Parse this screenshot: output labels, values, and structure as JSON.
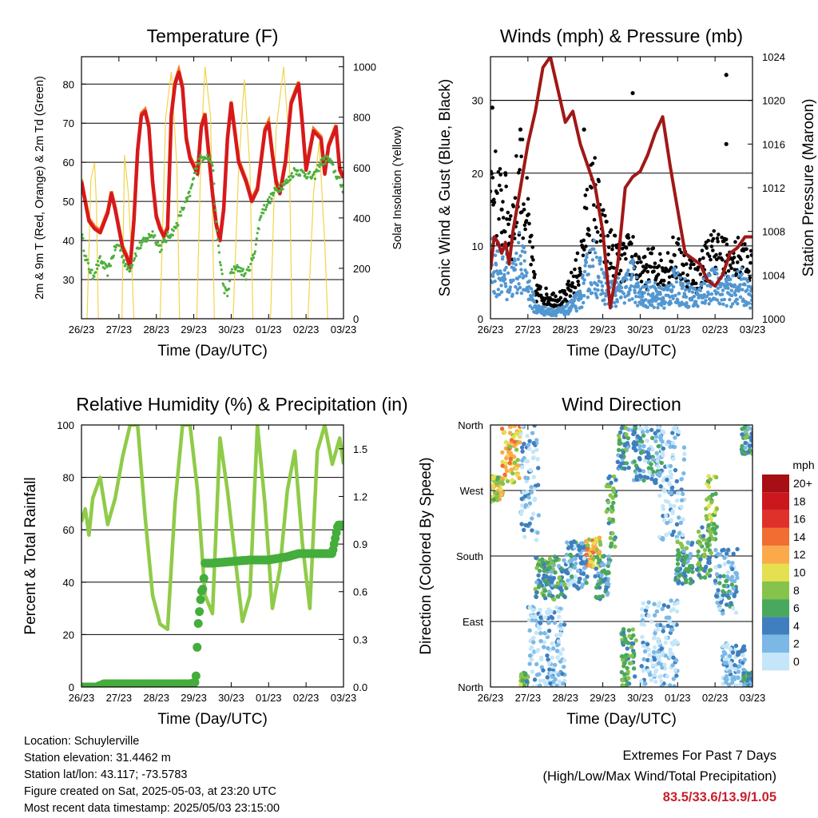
{
  "colors": {
    "temp2m": "#d7191c",
    "temp9m": "#f17c22",
    "dewpoint": "#4daf3c",
    "solar": "#f3d34a",
    "gust": "#000000",
    "wind": "#5297d1",
    "pressure": "#a01818",
    "rh": "#8fcb48",
    "precip": "#44ad3c"
  },
  "chart_data": [
    {
      "type": "line",
      "title": "Temperature (F)",
      "xlabel": "Time (Day/UTC)",
      "ylabel": "2m & 9m T (Red, Orange) & 2m Td (Green)",
      "y2label": "Solar Insolation (Yellow)",
      "x_ticks": [
        "26/23",
        "27/23",
        "28/23",
        "29/23",
        "30/23",
        "01/23",
        "02/23",
        "03/23"
      ],
      "ylim": [
        20,
        87
      ],
      "y_ticks": [
        30,
        40,
        50,
        60,
        70,
        80
      ],
      "y2lim": [
        0,
        1040
      ],
      "y2_ticks": [
        0,
        200,
        400,
        600,
        800,
        1000
      ],
      "grid": "horizontal",
      "series": [
        {
          "name": "2m T",
          "axis": "left",
          "x": [
            0,
            0.1,
            0.2,
            0.35,
            0.5,
            0.7,
            0.8,
            0.9,
            1.0,
            1.1,
            1.2,
            1.3,
            1.4,
            1.5,
            1.6,
            1.7,
            1.8,
            1.9,
            2.0,
            2.1,
            2.2,
            2.3,
            2.4,
            2.5,
            2.6,
            2.7,
            2.8,
            2.9,
            3.0,
            3.1,
            3.2,
            3.3,
            3.4,
            3.5,
            3.6,
            3.7,
            3.8,
            3.9,
            4.0,
            4.2,
            4.4,
            4.55,
            4.7,
            4.9,
            5.0,
            5.1,
            5.2,
            5.3,
            5.45,
            5.6,
            5.8,
            5.9,
            6.0,
            6.2,
            6.4,
            6.5,
            6.6,
            6.8,
            6.9,
            7.0
          ],
          "y": [
            55,
            50,
            45,
            43,
            42,
            47,
            52,
            48,
            43,
            38,
            36,
            33,
            45,
            63,
            72,
            73,
            69,
            55,
            46,
            43,
            41,
            43,
            72,
            80,
            83,
            79,
            66,
            61,
            59,
            57,
            69,
            72,
            62,
            52,
            44,
            40,
            48,
            66,
            75,
            60,
            55,
            50,
            53,
            68,
            70,
            62,
            55,
            52,
            60,
            75,
            80,
            70,
            58,
            68,
            66,
            57,
            64,
            69,
            58,
            56
          ]
        },
        {
          "name": "Td",
          "axis": "left",
          "x": [
            0,
            0.1,
            0.2,
            0.3,
            0.5,
            0.7,
            0.9,
            1.0,
            1.2,
            1.3,
            1.5,
            1.7,
            1.9,
            2.0,
            2.1,
            2.3,
            2.5,
            2.7,
            2.9,
            3.1,
            3.3,
            3.5,
            3.6,
            3.7,
            3.8,
            3.9,
            4.0,
            4.2,
            4.4,
            4.6,
            4.8,
            5.0,
            5.2,
            5.5,
            5.7,
            6.0,
            6.2,
            6.4,
            6.6,
            6.8,
            7.0
          ],
          "y": [
            42,
            36,
            33,
            31,
            35,
            32,
            38,
            39,
            33,
            33,
            38,
            40,
            42,
            40,
            38,
            41,
            43,
            48,
            52,
            60,
            62,
            60,
            44,
            35,
            28,
            26,
            32,
            33,
            31,
            36,
            47,
            50,
            53,
            55,
            58,
            57,
            56,
            60,
            61,
            57,
            53
          ]
        },
        {
          "name": "Solar",
          "axis": "right",
          "x": [
            0.15,
            0.25,
            0.35,
            0.4,
            0.45,
            1.08,
            1.15,
            1.25,
            1.32,
            1.4,
            2.1,
            2.25,
            2.4,
            2.55,
            2.62,
            3.08,
            3.2,
            3.3,
            3.45,
            3.55,
            4.05,
            4.2,
            4.35,
            4.5,
            4.58,
            5.05,
            5.2,
            5.4,
            5.55,
            5.62,
            6.05,
            6.2,
            6.35,
            6.5,
            6.58
          ],
          "y": [
            0,
            550,
            620,
            450,
            0,
            0,
            650,
            500,
            300,
            0,
            0,
            800,
            980,
            600,
            0,
            0,
            700,
            1000,
            800,
            0,
            0,
            600,
            950,
            600,
            0,
            0,
            750,
            1000,
            700,
            0,
            0,
            500,
            700,
            300,
            0
          ]
        }
      ]
    },
    {
      "type": "scatter",
      "title": "Winds (mph) & Pressure (mb)",
      "xlabel": "Time (Day/UTC)",
      "ylabel": "Sonic Wind & Gust (Blue, Black)",
      "y2label": "Station Pressure (Maroon)",
      "x_ticks": [
        "26/23",
        "27/23",
        "28/23",
        "29/23",
        "30/23",
        "01/23",
        "02/23",
        "03/23"
      ],
      "ylim": [
        0,
        36
      ],
      "y_ticks": [
        0,
        10,
        20,
        30
      ],
      "y2lim": [
        1000,
        1024
      ],
      "y2_ticks": [
        1000,
        1004,
        1008,
        1012,
        1016,
        1020,
        1024
      ],
      "grid": "horizontal",
      "series": [
        {
          "name": "Pressure",
          "axis": "right",
          "x": [
            0,
            0.1,
            0.2,
            0.3,
            0.4,
            0.5,
            0.6,
            0.8,
            1.0,
            1.2,
            1.4,
            1.6,
            1.8,
            2.0,
            2.2,
            2.4,
            2.6,
            2.8,
            3.0,
            3.2,
            3.4,
            3.6,
            3.8,
            4.0,
            4.2,
            4.4,
            4.6,
            4.8,
            5.0,
            5.2,
            5.4,
            5.6,
            5.8,
            6.0,
            6.2,
            6.4,
            6.6,
            6.8,
            7.0
          ],
          "y": [
            1004.5,
            1007.5,
            1007,
            1006,
            1007,
            1005,
            1008,
            1012,
            1016,
            1019,
            1023,
            1024,
            1021,
            1018,
            1019,
            1016,
            1014,
            1012,
            1008,
            1001,
            1005,
            1012,
            1013,
            1013.5,
            1015,
            1017,
            1018.5,
            1014,
            1010,
            1006,
            1005.5,
            1005,
            1003.5,
            1003,
            1004,
            1006,
            1006.5,
            1007.5,
            1007.5
          ]
        },
        {
          "name": "Gust",
          "axis": "left",
          "x": [
            0.05,
            0.4,
            0.8,
            0.3,
            2.5,
            3.8,
            6.3,
            6.3
          ],
          "y": [
            29,
            20,
            26,
            15,
            26,
            31,
            33.5,
            24
          ]
        }
      ]
    },
    {
      "type": "line",
      "title": "Relative Humidity (%) & Precipitation (in)",
      "xlabel": "Time (Day/UTC)",
      "ylabel": "Percent & Total Rainfall",
      "x_ticks": [
        "26/23",
        "27/23",
        "28/23",
        "29/23",
        "30/23",
        "01/23",
        "02/23",
        "03/23"
      ],
      "ylim": [
        0,
        100
      ],
      "y_ticks": [
        0,
        20,
        40,
        60,
        80,
        100
      ],
      "y2lim": [
        0,
        1.65
      ],
      "y2_ticks": [
        "0.0",
        "0.3",
        "0.6",
        "0.9",
        "1.2",
        "1.5"
      ],
      "grid": "horizontal",
      "series": [
        {
          "name": "RH",
          "axis": "left",
          "x": [
            0,
            0.1,
            0.2,
            0.3,
            0.5,
            0.7,
            0.9,
            1.1,
            1.3,
            1.5,
            1.7,
            1.9,
            2.1,
            2.3,
            2.5,
            2.7,
            2.9,
            3.1,
            3.3,
            3.5,
            3.7,
            3.9,
            4.1,
            4.3,
            4.5,
            4.7,
            4.9,
            5.1,
            5.3,
            5.5,
            5.7,
            5.9,
            6.1,
            6.3,
            6.5,
            6.7,
            6.9,
            7.0
          ],
          "y": [
            63,
            68,
            58,
            72,
            80,
            62,
            72,
            88,
            100,
            100,
            65,
            35,
            24,
            22,
            70,
            100,
            100,
            75,
            35,
            28,
            95,
            75,
            50,
            25,
            35,
            100,
            70,
            30,
            45,
            75,
            90,
            55,
            30,
            90,
            100,
            85,
            95,
            85
          ]
        },
        {
          "name": "Precip",
          "axis": "right",
          "x": [
            0,
            0.4,
            0.6,
            1.0,
            1.5,
            2.0,
            2.5,
            2.9,
            3.05,
            3.08,
            3.1,
            3.2,
            3.25,
            3.3,
            3.5,
            4.0,
            4.5,
            5.0,
            5.5,
            5.8,
            6.0,
            6.3,
            6.7,
            6.75,
            6.85,
            7.0
          ],
          "y": [
            0,
            0,
            0.02,
            0.02,
            0.02,
            0.02,
            0.02,
            0.02,
            0.03,
            0.15,
            0.35,
            0.6,
            0.62,
            0.78,
            0.78,
            0.79,
            0.8,
            0.8,
            0.82,
            0.84,
            0.84,
            0.84,
            0.84,
            0.9,
            1.02,
            1.02
          ]
        }
      ]
    },
    {
      "type": "scatter",
      "title": "Wind Direction",
      "xlabel": "Time (Day/UTC)",
      "ylabel": "Direction (Colored By Speed)",
      "x_ticks": [
        "26/23",
        "27/23",
        "28/23",
        "29/23",
        "30/23",
        "01/23",
        "02/23",
        "03/23"
      ],
      "y_ticks": [
        "North",
        "East",
        "South",
        "West",
        "North"
      ],
      "ylim": [
        0,
        360
      ],
      "colorbar": {
        "title": "mph",
        "labels": [
          "20+",
          "18",
          "16",
          "14",
          "12",
          "10",
          "8",
          "6",
          "4",
          "2",
          "0"
        ],
        "colors": [
          "#a50f15",
          "#cb181d",
          "#e0302a",
          "#f16d31",
          "#fba94a",
          "#e4e04f",
          "#86c34a",
          "#4aa85d",
          "#3f7fbf",
          "#7bb8e6",
          "#c5e6f8"
        ]
      },
      "clusters": [
        {
          "x0": 0.0,
          "x1": 0.35,
          "d0": 255,
          "d1": 290,
          "s": 9
        },
        {
          "x0": 0.3,
          "x1": 0.8,
          "d0": 280,
          "d1": 360,
          "s": 11
        },
        {
          "x0": 0.8,
          "x1": 1.3,
          "d0": 200,
          "d1": 360,
          "s": 2
        },
        {
          "x0": 0.8,
          "x1": 1.0,
          "d0": 0,
          "d1": 20,
          "s": 7
        },
        {
          "x0": 1.2,
          "x1": 2.0,
          "d0": 120,
          "d1": 180,
          "s": 5
        },
        {
          "x0": 1.0,
          "x1": 2.0,
          "d0": 0,
          "d1": 110,
          "s": 1
        },
        {
          "x0": 2.0,
          "x1": 2.6,
          "d0": 135,
          "d1": 200,
          "s": 3
        },
        {
          "x0": 2.55,
          "x1": 2.95,
          "d0": 165,
          "d1": 205,
          "s": 11
        },
        {
          "x0": 2.8,
          "x1": 3.2,
          "d0": 120,
          "d1": 180,
          "s": 4
        },
        {
          "x0": 3.1,
          "x1": 3.35,
          "d0": 190,
          "d1": 290,
          "s": 6
        },
        {
          "x0": 3.4,
          "x1": 3.7,
          "d0": 300,
          "d1": 360,
          "s": 5
        },
        {
          "x0": 3.5,
          "x1": 3.9,
          "d0": 0,
          "d1": 80,
          "s": 6
        },
        {
          "x0": 3.8,
          "x1": 4.6,
          "d0": 280,
          "d1": 360,
          "s": 3
        },
        {
          "x0": 4.0,
          "x1": 5.0,
          "d0": 0,
          "d1": 120,
          "s": 1
        },
        {
          "x0": 4.5,
          "x1": 5.2,
          "d0": 200,
          "d1": 360,
          "s": 1
        },
        {
          "x0": 4.9,
          "x1": 5.4,
          "d0": 140,
          "d1": 200,
          "s": 5
        },
        {
          "x0": 5.5,
          "x1": 5.9,
          "d0": 150,
          "d1": 220,
          "s": 6
        },
        {
          "x0": 5.75,
          "x1": 6.05,
          "d0": 200,
          "d1": 290,
          "s": 8
        },
        {
          "x0": 6.0,
          "x1": 6.6,
          "d0": 100,
          "d1": 190,
          "s": 3
        },
        {
          "x0": 6.2,
          "x1": 6.8,
          "d0": 0,
          "d1": 60,
          "s": 2
        },
        {
          "x0": 6.7,
          "x1": 7.0,
          "d0": 320,
          "d1": 360,
          "s": 5
        },
        {
          "x0": 6.75,
          "x1": 7.0,
          "d0": 0,
          "d1": 20,
          "s": 5
        }
      ]
    }
  ],
  "info": {
    "location": "Location: Schuylerville",
    "elevation": "Station elevation: 31.4462 m",
    "latlon": "Station lat/lon: 43.117; -73.5783",
    "created": "Figure created on Sat, 2025-05-03, at 23:20 UTC",
    "recent": "Most recent data timestamp: 2025/05/03 23:15:00"
  },
  "extremes": {
    "line1": "Extremes For Past 7 Days",
    "line2": "(High/Low/Max Wind/Total Precipitation)",
    "values": "83.5/33.6/13.9/1.05"
  }
}
